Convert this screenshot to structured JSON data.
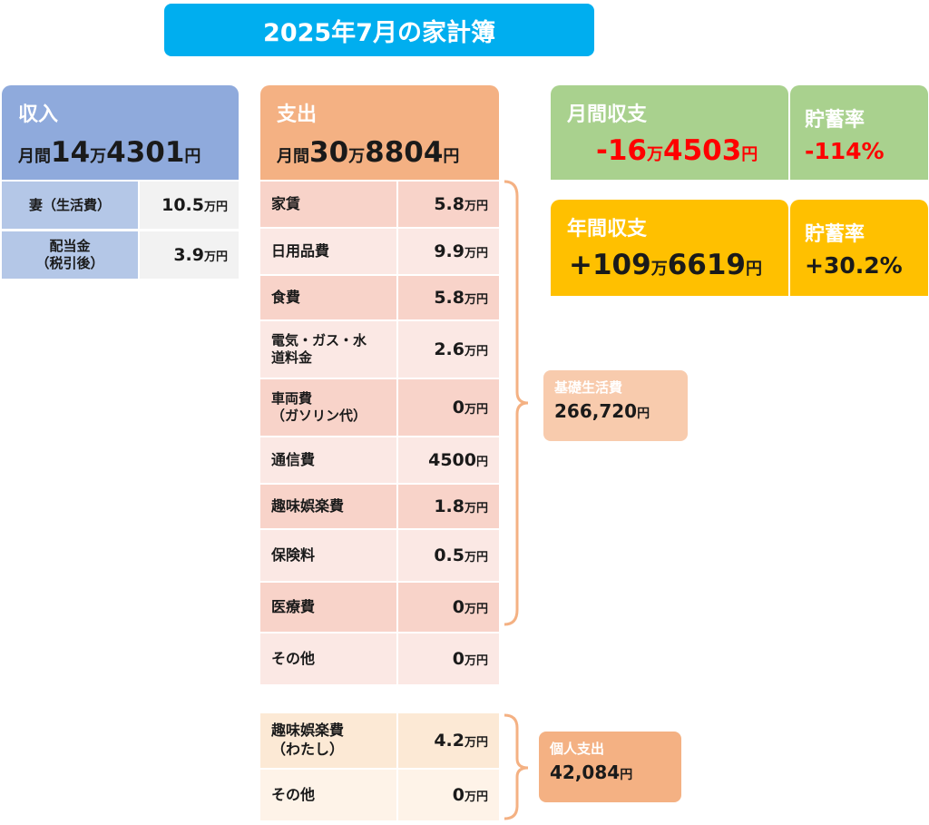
{
  "title": "2025年7月の家計簿",
  "income": {
    "label": "収入",
    "monthly_prefix": "月間",
    "amount_a": "14",
    "unit_a": "万",
    "amount_b": "4301",
    "unit_b": "円",
    "rows": [
      {
        "label": "妻（生活費）",
        "value": "10.5",
        "unit": "万円"
      },
      {
        "label": "配当金\n（税引後）",
        "value": "3.9",
        "unit": "万円"
      }
    ]
  },
  "expense": {
    "label": "支出",
    "monthly_prefix": "月間",
    "amount_a": "30",
    "unit_a": "万",
    "amount_b": "8804",
    "unit_b": "円",
    "rows": [
      {
        "label": "家賃",
        "value": "5.8",
        "unit": "万円"
      },
      {
        "label": "日用品費",
        "value": "9.9",
        "unit": "万円"
      },
      {
        "label": "食費",
        "value": "5.8",
        "unit": "万円"
      },
      {
        "label": "電気・ガス・水\n道料金",
        "value": "2.6",
        "unit": "万円"
      },
      {
        "label": "車両費\n（ガソリン代）",
        "value": "0",
        "unit": "万円"
      },
      {
        "label": "通信費",
        "value": "4500",
        "unit": "円"
      },
      {
        "label": "趣味娯楽費",
        "value": "1.8",
        "unit": "万円"
      },
      {
        "label": "保険料",
        "value": "0.5",
        "unit": "万円"
      },
      {
        "label": "医療費",
        "value": "0",
        "unit": "万円"
      },
      {
        "label": "その他",
        "value": "0",
        "unit": "万円"
      }
    ],
    "personal_rows": [
      {
        "label": "趣味娯楽費\n（わたし）",
        "value": "4.2",
        "unit": "万円"
      },
      {
        "label": "その他",
        "value": "0",
        "unit": "万円"
      }
    ]
  },
  "monthly_balance": {
    "label": "月間収支",
    "amount_a": "-16",
    "unit_a": "万",
    "amount_b": "4503",
    "unit_b": "円"
  },
  "monthly_rate": {
    "label": "貯蓄率",
    "value": "-114%"
  },
  "yearly_balance": {
    "label": "年間収支",
    "amount_a": "+109",
    "unit_a": "万",
    "amount_b": "6619",
    "unit_b": "円"
  },
  "yearly_rate": {
    "label": "貯蓄率",
    "value": "+30.2%"
  },
  "basic_living": {
    "label": "基礎生活費",
    "value": "266,720",
    "unit": "円"
  },
  "personal_spending": {
    "label": "個人支出",
    "value": "42,084",
    "unit": "円"
  },
  "colors": {
    "title": "#00aeef",
    "income": "#8faadc",
    "expense": "#f4b183",
    "monthly": "#a9d18e",
    "yearly": "#ffc000",
    "negative": "#ff0000"
  }
}
